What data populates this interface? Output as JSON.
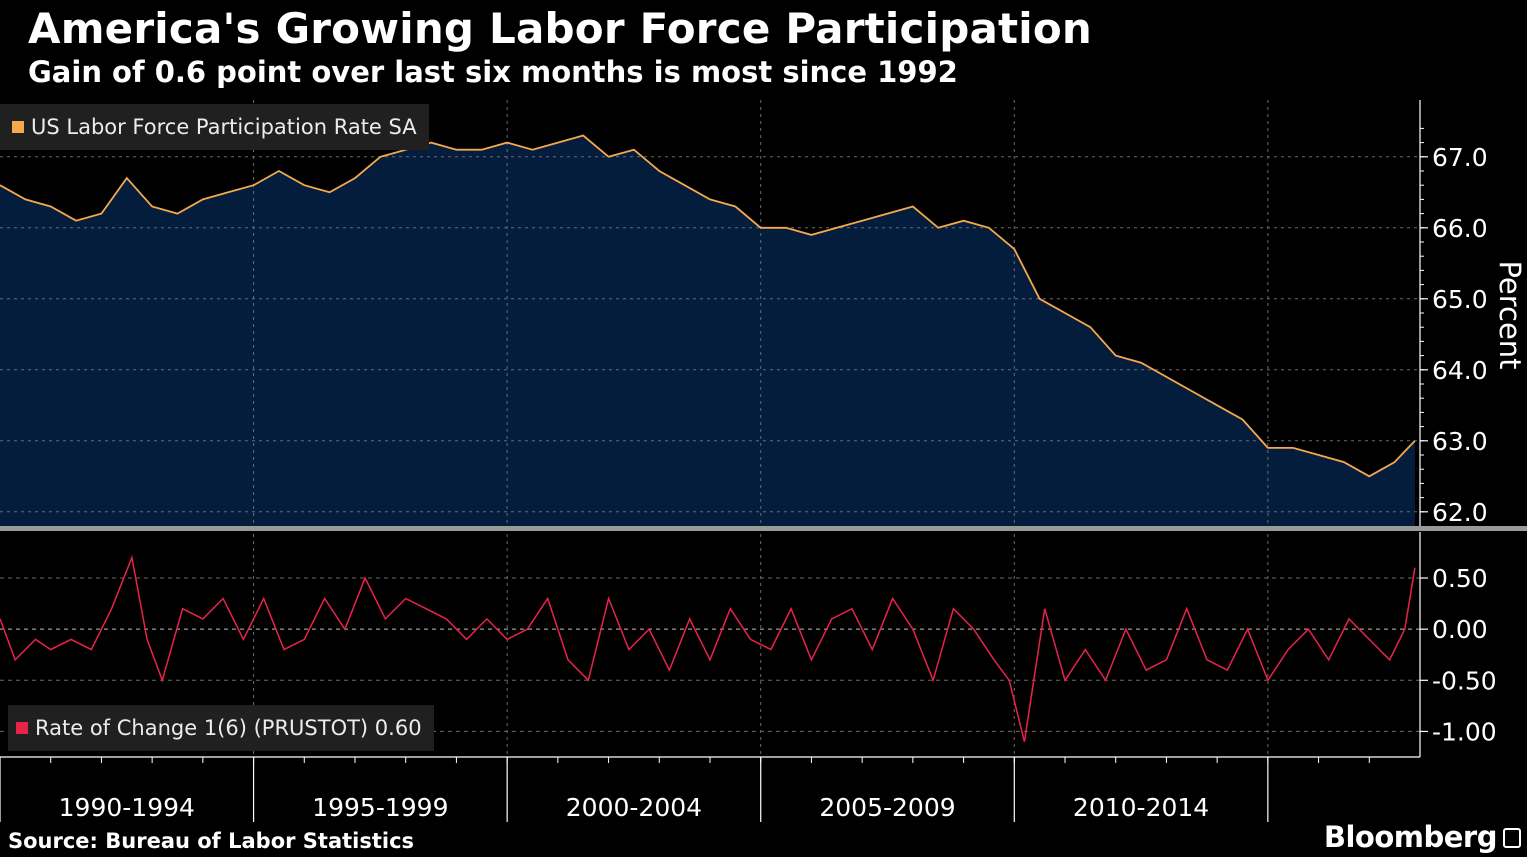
{
  "header": {
    "title": "America's Growing Labor Force Participation",
    "subtitle": "Gain of 0.6 point over last six months is most since 1992"
  },
  "footer": {
    "source": "Source: Bureau of Labor Statistics",
    "brand": "Bloomberg"
  },
  "colors": {
    "background": "#000000",
    "area_fill": "#051d3d",
    "participation_line": "#f5a94c",
    "rate_of_change_line": "#e8234a",
    "grid": "#6b6b6b",
    "legend_bg": "#202020"
  },
  "chart_data": [
    {
      "type": "area",
      "legend": "US Labor Force Participation Rate SA",
      "ylabel": "Percent",
      "ylim": [
        61.8,
        67.8
      ],
      "yticks": [
        62.0,
        63.0,
        64.0,
        65.0,
        66.0,
        67.0
      ],
      "ytick_labels": [
        "62.0",
        "63.0",
        "64.0",
        "65.0",
        "66.0",
        "67.0"
      ],
      "axis_side": "right",
      "grid": true,
      "x_range": [
        1989.0,
        2017.0
      ],
      "series": [
        {
          "x": [
            1989.0,
            1989.5,
            1990.0,
            1990.5,
            1991.0,
            1991.5,
            1992.0,
            1992.5,
            1993.0,
            1993.5,
            1994.0,
            1994.5,
            1995.0,
            1995.5,
            1996.0,
            1996.5,
            1997.0,
            1997.5,
            1998.0,
            1998.5,
            1999.0,
            1999.5,
            2000.0,
            2000.5,
            2001.0,
            2001.5,
            2002.0,
            2002.5,
            2003.0,
            2003.5,
            2004.0,
            2004.5,
            2005.0,
            2005.5,
            2006.0,
            2006.5,
            2007.0,
            2007.5,
            2008.0,
            2008.5,
            2009.0,
            2009.5,
            2010.0,
            2010.5,
            2011.0,
            2011.5,
            2012.0,
            2012.5,
            2013.0,
            2013.5,
            2014.0,
            2014.5,
            2015.0,
            2015.5,
            2016.0,
            2016.5,
            2016.9
          ],
          "y": [
            66.6,
            66.4,
            66.3,
            66.1,
            66.2,
            66.7,
            66.3,
            66.2,
            66.4,
            66.5,
            66.6,
            66.8,
            66.6,
            66.5,
            66.7,
            67.0,
            67.1,
            67.2,
            67.1,
            67.1,
            67.2,
            67.1,
            67.2,
            67.3,
            67.0,
            67.1,
            66.8,
            66.6,
            66.4,
            66.3,
            66.0,
            66.0,
            65.9,
            66.0,
            66.1,
            66.2,
            66.3,
            66.0,
            66.1,
            66.0,
            65.7,
            65.0,
            64.8,
            64.6,
            64.2,
            64.1,
            63.9,
            63.7,
            63.5,
            63.3,
            62.9,
            62.9,
            62.8,
            62.7,
            62.5,
            62.7,
            63.0
          ]
        }
      ]
    },
    {
      "type": "line",
      "legend": "Rate of Change 1(6) (PRUSTOT) 0.60",
      "ylim": [
        -1.25,
        0.95
      ],
      "yticks": [
        0.5,
        0.0,
        -0.5,
        -1.0
      ],
      "ytick_labels": [
        "0.50",
        "0.00",
        "-0.50",
        "-1.00"
      ],
      "axis_side": "right",
      "x_range": [
        1989.0,
        2017.0
      ],
      "series": [
        {
          "x": [
            1989.0,
            1989.3,
            1989.7,
            1990.0,
            1990.4,
            1990.8,
            1991.2,
            1991.6,
            1991.9,
            1992.2,
            1992.6,
            1993.0,
            1993.4,
            1993.8,
            1994.2,
            1994.6,
            1995.0,
            1995.4,
            1995.8,
            1996.2,
            1996.6,
            1997.0,
            1997.4,
            1997.8,
            1998.2,
            1998.6,
            1999.0,
            1999.4,
            1999.8,
            2000.2,
            2000.6,
            2001.0,
            2001.4,
            2001.8,
            2002.2,
            2002.6,
            2003.0,
            2003.4,
            2003.8,
            2004.2,
            2004.6,
            2005.0,
            2005.4,
            2005.8,
            2006.2,
            2006.6,
            2007.0,
            2007.4,
            2007.8,
            2008.2,
            2008.6,
            2008.9,
            2009.2,
            2009.6,
            2010.0,
            2010.4,
            2010.8,
            2011.2,
            2011.6,
            2012.0,
            2012.4,
            2012.8,
            2013.2,
            2013.6,
            2014.0,
            2014.4,
            2014.8,
            2015.2,
            2015.6,
            2016.0,
            2016.4,
            2016.7,
            2016.9
          ],
          "y": [
            0.1,
            -0.3,
            -0.1,
            -0.2,
            -0.1,
            -0.2,
            0.2,
            0.7,
            -0.1,
            -0.5,
            0.2,
            0.1,
            0.3,
            -0.1,
            0.3,
            -0.2,
            -0.1,
            0.3,
            0.0,
            0.5,
            0.1,
            0.3,
            0.2,
            0.1,
            -0.1,
            0.1,
            -0.1,
            0.0,
            0.3,
            -0.3,
            -0.5,
            0.3,
            -0.2,
            0.0,
            -0.4,
            0.1,
            -0.3,
            0.2,
            -0.1,
            -0.2,
            0.2,
            -0.3,
            0.1,
            0.2,
            -0.2,
            0.3,
            0.0,
            -0.5,
            0.2,
            0.0,
            -0.3,
            -0.5,
            -1.1,
            0.2,
            -0.5,
            -0.2,
            -0.5,
            0.0,
            -0.4,
            -0.3,
            0.2,
            -0.3,
            -0.4,
            0.0,
            -0.5,
            -0.2,
            0.0,
            -0.3,
            0.1,
            -0.1,
            -0.3,
            0.0,
            0.6
          ]
        }
      ]
    }
  ],
  "x_axis": {
    "labels": [
      {
        "text": "1990-1994",
        "from": 1989.0,
        "to": 1994.0
      },
      {
        "text": "1995-1999",
        "from": 1994.0,
        "to": 1999.0
      },
      {
        "text": "2000-2004",
        "from": 1999.0,
        "to": 2004.0
      },
      {
        "text": "2005-2009",
        "from": 2004.0,
        "to": 2009.0
      },
      {
        "text": "2010-2014",
        "from": 2009.0,
        "to": 2014.0
      }
    ],
    "gridlines": [
      1994.0,
      1999.0,
      2004.0,
      2009.0,
      2014.0
    ]
  }
}
